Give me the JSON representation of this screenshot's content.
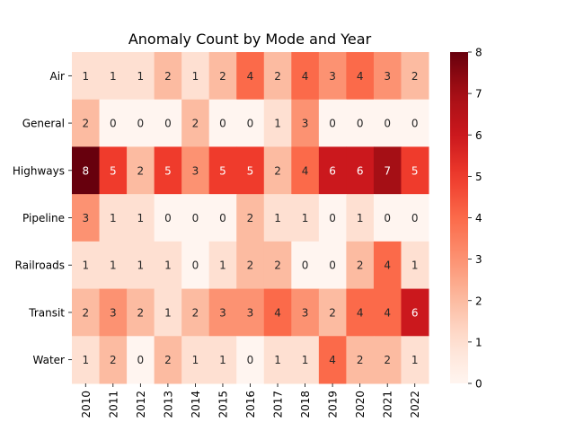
{
  "chart_data": {
    "type": "heatmap",
    "title": "Anomaly Count by Mode and Year",
    "xlabel": "",
    "ylabel": "",
    "x_categories": [
      "2010",
      "2011",
      "2012",
      "2013",
      "2014",
      "2015",
      "2016",
      "2017",
      "2018",
      "2019",
      "2020",
      "2021",
      "2022"
    ],
    "y_categories": [
      "Air",
      "General",
      "Highways",
      "Pipeline",
      "Railroads",
      "Transit",
      "Water"
    ],
    "values": [
      [
        1,
        1,
        1,
        2,
        1,
        2,
        4,
        2,
        4,
        3,
        4,
        3,
        2
      ],
      [
        2,
        0,
        0,
        0,
        2,
        0,
        0,
        1,
        3,
        0,
        0,
        0,
        0
      ],
      [
        8,
        5,
        2,
        5,
        3,
        5,
        5,
        2,
        4,
        6,
        6,
        7,
        5
      ],
      [
        3,
        1,
        1,
        0,
        0,
        0,
        2,
        1,
        1,
        0,
        1,
        0,
        0
      ],
      [
        1,
        1,
        1,
        1,
        0,
        1,
        2,
        2,
        0,
        0,
        2,
        4,
        1
      ],
      [
        2,
        3,
        2,
        1,
        2,
        3,
        3,
        4,
        3,
        2,
        4,
        4,
        6
      ],
      [
        1,
        2,
        0,
        2,
        1,
        1,
        0,
        1,
        1,
        4,
        2,
        2,
        1
      ]
    ],
    "colorbar": {
      "min": 0,
      "max": 8,
      "ticks": [
        "0",
        "1",
        "2",
        "3",
        "4",
        "5",
        "6",
        "7",
        "8"
      ]
    },
    "colormap": "Reds",
    "annotations": true
  }
}
